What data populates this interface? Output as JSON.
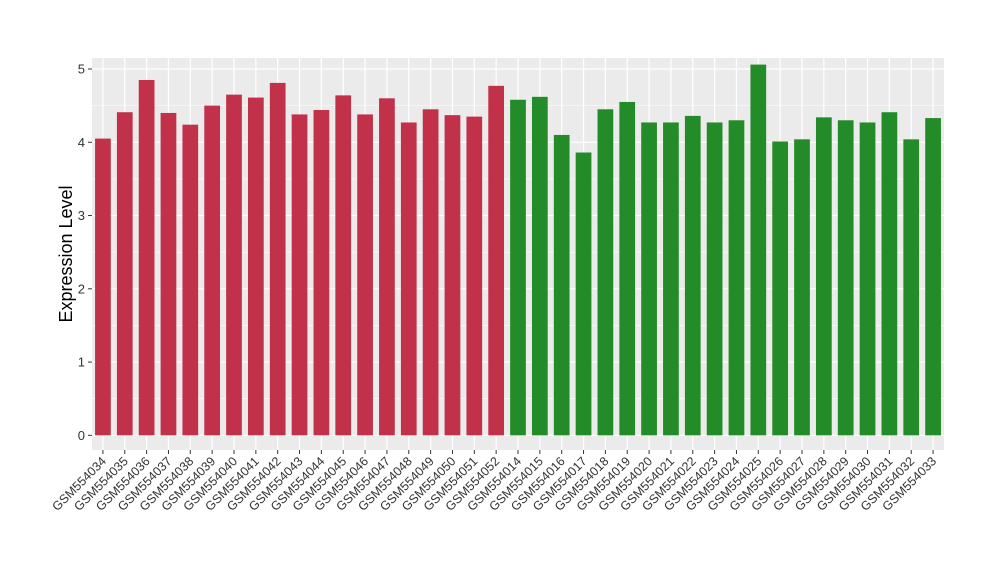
{
  "chart_data": {
    "type": "bar",
    "ylabel": "Expression Level",
    "xlabel": "",
    "ylim": [
      -0.2,
      5.15
    ],
    "yticks": [
      0,
      1,
      2,
      3,
      4,
      5
    ],
    "grid": true,
    "background_color": "#ebebeb",
    "gridline_color": "#ffffff",
    "categories": [
      "GSM554034",
      "GSM554035",
      "GSM554036",
      "GSM554037",
      "GSM554038",
      "GSM554039",
      "GSM554040",
      "GSM554041",
      "GSM554042",
      "GSM554043",
      "GSM554044",
      "GSM554045",
      "GSM554046",
      "GSM554047",
      "GSM554048",
      "GSM554049",
      "GSM554050",
      "GSM554051",
      "GSM554052",
      "GSM554014",
      "GSM554015",
      "GSM554016",
      "GSM554017",
      "GSM554018",
      "GSM554019",
      "GSM554020",
      "GSM554021",
      "GSM554022",
      "GSM554023",
      "GSM554024",
      "GSM554025",
      "GSM554026",
      "GSM554027",
      "GSM554028",
      "GSM554029",
      "GSM554030",
      "GSM554031",
      "GSM554032",
      "GSM554033"
    ],
    "values": [
      4.05,
      4.41,
      4.85,
      4.4,
      4.24,
      4.5,
      4.65,
      4.61,
      4.81,
      4.38,
      4.44,
      4.64,
      4.38,
      4.6,
      4.27,
      4.45,
      4.37,
      4.35,
      4.77,
      4.58,
      4.62,
      4.1,
      3.86,
      4.45,
      4.55,
      4.27,
      4.27,
      4.36,
      4.27,
      4.3,
      5.06,
      4.01,
      4.04,
      4.34,
      4.3,
      4.27,
      4.41,
      4.04,
      4.33
    ],
    "bar_colors": [
      "#c1324a",
      "#c1324a",
      "#c1324a",
      "#c1324a",
      "#c1324a",
      "#c1324a",
      "#c1324a",
      "#c1324a",
      "#c1324a",
      "#c1324a",
      "#c1324a",
      "#c1324a",
      "#c1324a",
      "#c1324a",
      "#c1324a",
      "#c1324a",
      "#c1324a",
      "#c1324a",
      "#c1324a",
      "#238b27",
      "#238b27",
      "#238b27",
      "#238b27",
      "#238b27",
      "#238b27",
      "#238b27",
      "#238b27",
      "#238b27",
      "#238b27",
      "#238b27",
      "#238b27",
      "#238b27",
      "#238b27",
      "#238b27",
      "#238b27",
      "#238b27",
      "#238b27",
      "#238b27",
      "#238b27"
    ]
  }
}
